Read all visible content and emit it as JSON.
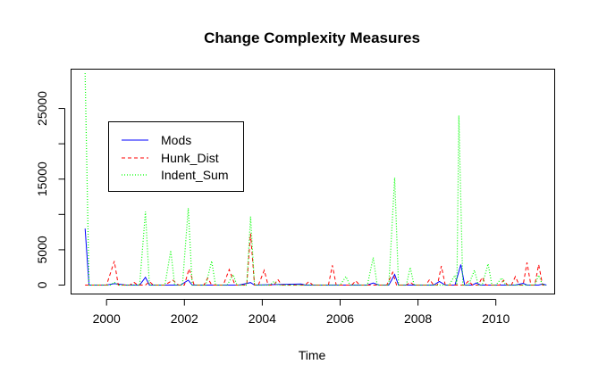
{
  "chart_data": {
    "type": "line",
    "title": "Change Complexity Measures",
    "xlabel": "Time",
    "ylabel": "",
    "xlim": [
      1999.1,
      2011.5
    ],
    "ylim": [
      -1200,
      30500
    ],
    "x_ticks": [
      2000,
      2002,
      2004,
      2006,
      2008,
      2010
    ],
    "x_tick_labels": [
      "2000",
      "2002",
      "2004",
      "2006",
      "2008",
      "2010"
    ],
    "y_ticks": [
      0,
      5000,
      15000,
      25000
    ],
    "y_tick_labels": [
      "0",
      "5000",
      "15000",
      "25000"
    ],
    "y_minor_ticks": [
      10000,
      20000
    ],
    "grid": false,
    "legend_position": "top-left",
    "series": [
      {
        "name": "Mods",
        "color": "#0000ff",
        "dash": "solid",
        "points": [
          [
            1999.45,
            8000
          ],
          [
            1999.55,
            0
          ],
          [
            2000.0,
            0
          ],
          [
            2000.2,
            200
          ],
          [
            2000.5,
            0
          ],
          [
            2000.85,
            0
          ],
          [
            2001.0,
            1100
          ],
          [
            2001.1,
            0
          ],
          [
            2001.9,
            0
          ],
          [
            2002.1,
            700
          ],
          [
            2002.2,
            0
          ],
          [
            2003.4,
            0
          ],
          [
            2003.7,
            350
          ],
          [
            2003.8,
            0
          ],
          [
            2005.0,
            150
          ],
          [
            2005.1,
            0
          ],
          [
            2006.7,
            0
          ],
          [
            2006.85,
            300
          ],
          [
            2007.0,
            0
          ],
          [
            2007.25,
            0
          ],
          [
            2007.4,
            1500
          ],
          [
            2007.5,
            0
          ],
          [
            2008.4,
            0
          ],
          [
            2008.55,
            500
          ],
          [
            2008.7,
            0
          ],
          [
            2008.95,
            0
          ],
          [
            2009.1,
            2900
          ],
          [
            2009.2,
            0
          ],
          [
            2009.4,
            0
          ],
          [
            2009.5,
            300
          ],
          [
            2009.6,
            0
          ],
          [
            2010.5,
            0
          ],
          [
            2010.7,
            250
          ],
          [
            2010.8,
            0
          ],
          [
            2011.1,
            0
          ],
          [
            2011.2,
            150
          ],
          [
            2011.3,
            0
          ]
        ]
      },
      {
        "name": "Hunk_Dist",
        "color": "#ff0000",
        "dash": "dashed",
        "points": [
          [
            1999.45,
            0
          ],
          [
            2000.0,
            0
          ],
          [
            2000.2,
            3400
          ],
          [
            2000.3,
            0
          ],
          [
            2000.6,
            0
          ],
          [
            2000.7,
            400
          ],
          [
            2000.8,
            0
          ],
          [
            2001.0,
            0
          ],
          [
            2001.1,
            500
          ],
          [
            2001.2,
            0
          ],
          [
            2001.5,
            0
          ],
          [
            2001.7,
            700
          ],
          [
            2001.85,
            0
          ],
          [
            2002.0,
            0
          ],
          [
            2002.12,
            2300
          ],
          [
            2002.25,
            0
          ],
          [
            2002.5,
            0
          ],
          [
            2002.6,
            1000
          ],
          [
            2002.7,
            0
          ],
          [
            2003.0,
            0
          ],
          [
            2003.15,
            2200
          ],
          [
            2003.3,
            0
          ],
          [
            2003.6,
            0
          ],
          [
            2003.7,
            7300
          ],
          [
            2003.8,
            0
          ],
          [
            2003.9,
            0
          ],
          [
            2004.05,
            2100
          ],
          [
            2004.15,
            0
          ],
          [
            2004.3,
            0
          ],
          [
            2004.4,
            800
          ],
          [
            2004.5,
            0
          ],
          [
            2005.1,
            0
          ],
          [
            2005.2,
            500
          ],
          [
            2005.3,
            0
          ],
          [
            2005.7,
            0
          ],
          [
            2005.8,
            2800
          ],
          [
            2005.9,
            0
          ],
          [
            2006.3,
            0
          ],
          [
            2006.4,
            600
          ],
          [
            2006.5,
            0
          ],
          [
            2007.2,
            0
          ],
          [
            2007.35,
            1800
          ],
          [
            2007.45,
            0
          ],
          [
            2007.7,
            0
          ],
          [
            2007.8,
            400
          ],
          [
            2007.9,
            0
          ],
          [
            2008.2,
            0
          ],
          [
            2008.3,
            800
          ],
          [
            2008.4,
            0
          ],
          [
            2008.5,
            0
          ],
          [
            2008.6,
            2700
          ],
          [
            2008.7,
            0
          ],
          [
            2009.2,
            0
          ],
          [
            2009.3,
            600
          ],
          [
            2009.4,
            0
          ],
          [
            2009.55,
            0
          ],
          [
            2009.65,
            1100
          ],
          [
            2009.75,
            0
          ],
          [
            2010.1,
            0
          ],
          [
            2010.2,
            700
          ],
          [
            2010.3,
            0
          ],
          [
            2010.4,
            0
          ],
          [
            2010.5,
            1200
          ],
          [
            2010.6,
            0
          ],
          [
            2010.7,
            0
          ],
          [
            2010.8,
            3200
          ],
          [
            2010.9,
            0
          ],
          [
            2011.0,
            0
          ],
          [
            2011.1,
            2900
          ],
          [
            2011.2,
            0
          ],
          [
            2011.3,
            0
          ]
        ]
      },
      {
        "name": "Indent_Sum",
        "color": "#00ff00",
        "dash": "dotted",
        "points": [
          [
            1999.45,
            30000
          ],
          [
            1999.55,
            0
          ],
          [
            2000.1,
            0
          ],
          [
            2000.2,
            400
          ],
          [
            2000.3,
            0
          ],
          [
            2000.85,
            0
          ],
          [
            2001.0,
            10400
          ],
          [
            2001.1,
            0
          ],
          [
            2001.5,
            0
          ],
          [
            2001.65,
            4900
          ],
          [
            2001.75,
            0
          ],
          [
            2001.95,
            0
          ],
          [
            2002.1,
            10900
          ],
          [
            2002.2,
            0
          ],
          [
            2002.55,
            0
          ],
          [
            2002.7,
            3400
          ],
          [
            2002.8,
            0
          ],
          [
            2003.1,
            0
          ],
          [
            2003.25,
            1500
          ],
          [
            2003.35,
            0
          ],
          [
            2003.6,
            0
          ],
          [
            2003.7,
            9700
          ],
          [
            2003.8,
            0
          ],
          [
            2004.2,
            0
          ],
          [
            2004.3,
            500
          ],
          [
            2004.4,
            0
          ],
          [
            2006.0,
            0
          ],
          [
            2006.15,
            1200
          ],
          [
            2006.25,
            0
          ],
          [
            2006.7,
            0
          ],
          [
            2006.85,
            3900
          ],
          [
            2006.95,
            0
          ],
          [
            2007.25,
            0
          ],
          [
            2007.4,
            15200
          ],
          [
            2007.5,
            0
          ],
          [
            2007.7,
            0
          ],
          [
            2007.8,
            2500
          ],
          [
            2007.9,
            0
          ],
          [
            2008.8,
            0
          ],
          [
            2008.95,
            1400
          ],
          [
            2009.0,
            0
          ],
          [
            2009.05,
            24000
          ],
          [
            2009.15,
            0
          ],
          [
            2009.3,
            0
          ],
          [
            2009.45,
            2100
          ],
          [
            2009.55,
            0
          ],
          [
            2009.65,
            0
          ],
          [
            2009.8,
            3000
          ],
          [
            2009.9,
            0
          ],
          [
            2010.0,
            0
          ],
          [
            2010.15,
            1000
          ],
          [
            2010.25,
            0
          ],
          [
            2011.0,
            0
          ],
          [
            2011.1,
            1400
          ],
          [
            2011.2,
            0
          ],
          [
            2011.3,
            0
          ]
        ]
      }
    ]
  }
}
